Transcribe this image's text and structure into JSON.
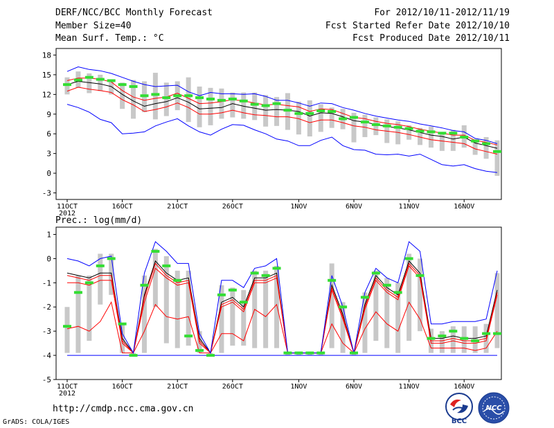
{
  "header": {
    "title": "DERF/NCC/BCC Monthly Forecast",
    "member_size": "Member Size=40",
    "variable": "Mean Surf. Temp.: °C",
    "period": "For 2012/10/11-2012/11/19",
    "fcst_started": "Fcst Started Refer Date 2012/10/10",
    "fcst_produced": "Fcst Produced Date 2012/10/11"
  },
  "panel2_label": "Prec.: log(mm/d)",
  "footer": {
    "url": "http://cmdp.ncc.cma.gov.cn",
    "credit": "GrADS: COLA/IGES"
  },
  "logos": {
    "bcc": "BCC",
    "ncc": "NCC"
  },
  "colors": {
    "mean": "#000000",
    "spread": "#ff0000",
    "extreme": "#0000ff",
    "box": "#c8c8c8",
    "obs": "#33dd33"
  },
  "chart_data": [
    {
      "type": "line",
      "title": "Mean Surf. Temp.: °C",
      "ylim": [
        -4,
        19
      ],
      "yticks": [
        -3,
        0,
        3,
        6,
        9,
        12,
        15,
        18
      ],
      "x_ticks": [
        {
          "day": 1,
          "label": "11OCT",
          "sub": "2012"
        },
        {
          "day": 6,
          "label": "16OCT"
        },
        {
          "day": 11,
          "label": "21OCT"
        },
        {
          "day": 16,
          "label": "26OCT"
        },
        {
          "day": 22,
          "label": "1NOV"
        },
        {
          "day": 27,
          "label": "6NOV"
        },
        {
          "day": 32,
          "label": "11NOV"
        },
        {
          "day": 37,
          "label": "16NOV"
        }
      ],
      "days": 40,
      "series": [
        {
          "name": "mean",
          "values": [
            13.5,
            14,
            13.8,
            13.6,
            13.2,
            12,
            11,
            10.2,
            10.6,
            10.9,
            11.5,
            10.8,
            9.8,
            9.9,
            10,
            10.6,
            10.2,
            9.9,
            9.6,
            9.7,
            9.6,
            9.4,
            8.7,
            9.2,
            9.1,
            8.6,
            8.0,
            7.8,
            7.4,
            7.1,
            6.9,
            6.6,
            6.2,
            5.8,
            5.6,
            5.2,
            5.5,
            4.6,
            4.2,
            3.8
          ]
        },
        {
          "name": "upper",
          "values": [
            14.1,
            14.5,
            14.5,
            14.3,
            13.9,
            12.6,
            11.6,
            11.1,
            11.4,
            11.6,
            12.2,
            11.4,
            10.6,
            10.7,
            10.9,
            11.2,
            11.0,
            10.7,
            10.4,
            10.5,
            10.3,
            10.1,
            9.4,
            9.8,
            9.7,
            9.1,
            8.5,
            8.3,
            7.9,
            7.6,
            7.4,
            7.1,
            6.7,
            6.4,
            6.1,
            5.8,
            5.8,
            5.0,
            4.7,
            4.3
          ]
        },
        {
          "name": "lower",
          "values": [
            12.5,
            13.1,
            12.8,
            12.6,
            12.3,
            11.2,
            10.4,
            9.4,
            9.7,
            10.1,
            10.7,
            10.0,
            9.0,
            9.0,
            9.2,
            9.6,
            9.2,
            8.9,
            8.8,
            8.6,
            8.6,
            8.3,
            7.7,
            8.1,
            8.1,
            7.7,
            7.2,
            7.0,
            6.6,
            6.4,
            6.2,
            5.9,
            5.5,
            5.1,
            4.9,
            4.7,
            4.5,
            3.7,
            3.3,
            2.9
          ]
        },
        {
          "name": "max",
          "values": [
            15.5,
            16.2,
            15.8,
            15.6,
            15.2,
            14.6,
            14.0,
            13.5,
            13.2,
            13.3,
            13.4,
            12.4,
            11.8,
            12.3,
            12.1,
            12.1,
            12.0,
            12.1,
            11.7,
            11.1,
            11.1,
            10.7,
            10.2,
            10.7,
            10.6,
            10.0,
            9.6,
            9.1,
            8.7,
            8.4,
            8.1,
            7.9,
            7.5,
            7.2,
            6.9,
            6.5,
            6.3,
            5.3,
            5.0,
            4.5
          ]
        },
        {
          "name": "min",
          "values": [
            10.5,
            10.0,
            9.3,
            8.2,
            7.7,
            6.0,
            6.1,
            6.3,
            7.2,
            7.8,
            8.3,
            7.2,
            6.3,
            5.8,
            6.7,
            7.4,
            7.3,
            6.6,
            6.0,
            5.2,
            4.9,
            4.2,
            4.2,
            5.0,
            5.5,
            4.2,
            3.6,
            3.5,
            2.9,
            2.8,
            2.9,
            2.6,
            2.9,
            2.1,
            1.3,
            1.1,
            1.3,
            0.7,
            0.3,
            0.1
          ]
        }
      ],
      "obs": [
        13.5,
        14.2,
        14.6,
        14.3,
        14.1,
        13.5,
        13.2,
        11.8,
        12.0,
        11.5,
        11.8,
        11.8,
        11.5,
        11.3,
        11.1,
        11.3,
        11.0,
        10.5,
        10.3,
        10.6,
        9.6,
        9.1,
        9.1,
        9.5,
        9.4,
        8.3,
        8.5,
        7.8,
        7.4,
        7.2,
        7.0,
        6.8,
        6.4,
        6.3,
        6.1,
        6.1,
        5.5,
        4.9,
        4.5,
        3.3
      ],
      "boxes": [
        {
          "hi": 14.6,
          "lo": 12.0
        },
        {
          "hi": 15.5,
          "lo": 13.0
        },
        {
          "hi": 15.2,
          "lo": 12.2
        },
        {
          "hi": 15.0,
          "lo": 12.5
        },
        {
          "hi": 14.3,
          "lo": 12.0
        },
        {
          "hi": 13.8,
          "lo": 9.8
        },
        {
          "hi": 14.2,
          "lo": 8.3
        },
        {
          "hi": 14.0,
          "lo": 9.3
        },
        {
          "hi": 15.3,
          "lo": 8.2
        },
        {
          "hi": 13.8,
          "lo": 8.7
        },
        {
          "hi": 14.0,
          "lo": 9.6
        },
        {
          "hi": 14.6,
          "lo": 7.8
        },
        {
          "hi": 13.2,
          "lo": 7.0
        },
        {
          "hi": 13.0,
          "lo": 7.3
        },
        {
          "hi": 12.9,
          "lo": 8.3
        },
        {
          "hi": 12.3,
          "lo": 8.5
        },
        {
          "hi": 12.3,
          "lo": 8.3
        },
        {
          "hi": 12.3,
          "lo": 8.1
        },
        {
          "hi": 11.9,
          "lo": 7.1
        },
        {
          "hi": 11.6,
          "lo": 7.2
        },
        {
          "hi": 12.2,
          "lo": 6.6
        },
        {
          "hi": 10.9,
          "lo": 5.9
        },
        {
          "hi": 11.1,
          "lo": 5.6
        },
        {
          "hi": 10.5,
          "lo": 6.3
        },
        {
          "hi": 10.0,
          "lo": 6.9
        },
        {
          "hi": 9.8,
          "lo": 6.7
        },
        {
          "hi": 9.2,
          "lo": 4.7
        },
        {
          "hi": 8.9,
          "lo": 5.5
        },
        {
          "hi": 8.5,
          "lo": 5.8
        },
        {
          "hi": 8.2,
          "lo": 4.6
        },
        {
          "hi": 7.9,
          "lo": 4.4
        },
        {
          "hi": 7.3,
          "lo": 5.1
        },
        {
          "hi": 6.9,
          "lo": 4.3
        },
        {
          "hi": 7.1,
          "lo": 3.9
        },
        {
          "hi": 6.2,
          "lo": 3.4
        },
        {
          "hi": 6.6,
          "lo": 3.4
        },
        {
          "hi": 7.3,
          "lo": 3.9
        },
        {
          "hi": 5.2,
          "lo": 2.8
        },
        {
          "hi": 5.5,
          "lo": 2.2
        },
        {
          "hi": 5.0,
          "lo": -0.4
        }
      ]
    },
    {
      "type": "line",
      "title": "Prec.: log(mm/d)",
      "ylim": [
        -5,
        1.3
      ],
      "yticks": [
        -5,
        -4,
        -3,
        -2,
        -1,
        0,
        1
      ],
      "x_ticks": [
        {
          "day": 1,
          "label": "11OCT",
          "sub": "2012"
        },
        {
          "day": 6,
          "label": "16OCT"
        },
        {
          "day": 11,
          "label": "21OCT"
        },
        {
          "day": 16,
          "label": "26OCT"
        },
        {
          "day": 22,
          "label": "1NOV"
        },
        {
          "day": 27,
          "label": "6NOV"
        },
        {
          "day": 32,
          "label": "11NOV"
        },
        {
          "day": 37,
          "label": "16NOV"
        }
      ],
      "days": 40,
      "series": [
        {
          "name": "mean",
          "values": [
            -0.6,
            -0.7,
            -0.8,
            -0.6,
            -0.6,
            -3.3,
            -3.9,
            -1.5,
            -0.1,
            -0.6,
            -0.9,
            -0.8,
            -3.3,
            -3.9,
            -1.8,
            -1.6,
            -2.0,
            -0.8,
            -0.8,
            -0.6,
            -3.9,
            -3.9,
            -3.9,
            -3.9,
            -1.1,
            -2.3,
            -3.9,
            -1.9,
            -0.7,
            -1.2,
            -1.5,
            -0.1,
            -0.6,
            -3.3,
            -3.3,
            -3.2,
            -3.3,
            -3.3,
            -3.2,
            -1.3
          ]
        },
        {
          "name": "upper",
          "values": [
            -0.7,
            -0.8,
            -0.9,
            -0.7,
            -0.7,
            -3.4,
            -3.9,
            -1.6,
            -0.2,
            -0.7,
            -1.0,
            -0.9,
            -3.4,
            -3.9,
            -1.9,
            -1.7,
            -2.1,
            -0.9,
            -0.9,
            -0.7,
            -3.9,
            -3.9,
            -3.9,
            -3.9,
            -1.2,
            -2.4,
            -3.9,
            -2.0,
            -0.8,
            -1.3,
            -1.6,
            -0.2,
            -0.7,
            -3.4,
            -3.4,
            -3.3,
            -3.4,
            -3.4,
            -3.3,
            -1.4
          ]
        },
        {
          "name": "lower",
          "values": [
            -1.0,
            -1.0,
            -1.1,
            -0.9,
            -0.9,
            -3.5,
            -3.9,
            -1.8,
            -0.4,
            -0.8,
            -1.1,
            -1.0,
            -3.5,
            -3.9,
            -2.0,
            -1.8,
            -2.2,
            -1.0,
            -1.0,
            -0.8,
            -3.9,
            -3.9,
            -3.9,
            -3.9,
            -1.3,
            -2.5,
            -3.9,
            -2.1,
            -0.9,
            -1.4,
            -1.7,
            -0.3,
            -0.8,
            -3.5,
            -3.5,
            -3.4,
            -3.5,
            -3.5,
            -3.4,
            -1.5
          ]
        },
        {
          "name": "lower2",
          "values": [
            -2.9,
            -2.8,
            -3.0,
            -2.6,
            -1.8,
            -3.9,
            -3.9,
            -3.0,
            -1.9,
            -2.4,
            -2.5,
            -2.4,
            -3.9,
            -3.9,
            -3.1,
            -3.1,
            -3.4,
            -2.1,
            -2.4,
            -1.9,
            -3.9,
            -3.9,
            -3.9,
            -3.9,
            -2.7,
            -3.5,
            -3.9,
            -2.9,
            -2.2,
            -2.7,
            -3.0,
            -1.8,
            -2.5,
            -3.7,
            -3.7,
            -3.7,
            -3.7,
            -3.8,
            -3.7,
            -3.0
          ]
        },
        {
          "name": "max",
          "values": [
            0.0,
            -0.1,
            -0.3,
            0.0,
            0.1,
            -3.1,
            -3.9,
            -0.6,
            0.7,
            0.3,
            -0.2,
            -0.2,
            -3.1,
            -3.9,
            -0.9,
            -0.9,
            -1.2,
            -0.4,
            -0.3,
            0.0,
            -3.9,
            -3.9,
            -3.9,
            -3.9,
            -0.7,
            -2.0,
            -3.9,
            -1.4,
            -0.4,
            -0.8,
            -1.0,
            0.7,
            0.3,
            -2.7,
            -2.7,
            -2.6,
            -2.6,
            -2.6,
            -2.5,
            -0.5
          ]
        },
        {
          "name": "min",
          "values": [
            -4,
            -4,
            -4,
            -4,
            -4,
            -4,
            -4,
            -4,
            -4,
            -4,
            -4,
            -4,
            -4,
            -4,
            -4,
            -4,
            -4,
            -4,
            -4,
            -4,
            -4,
            -4,
            -4,
            -4,
            -4,
            -4,
            -4,
            -4,
            -4,
            -4,
            -4,
            -4,
            -4,
            -4,
            -4,
            -4,
            -4,
            -4,
            -4,
            -4
          ]
        }
      ],
      "obs": [
        -2.8,
        -1.4,
        -1.0,
        -0.3,
        0.0,
        -2.7,
        -4.0,
        -1.1,
        0.3,
        -0.3,
        -0.9,
        -3.2,
        -3.8,
        -4.0,
        -1.5,
        -1.3,
        -1.8,
        -0.6,
        -0.7,
        -0.4,
        -3.9,
        -3.9,
        -3.9,
        -3.9,
        -0.9,
        -2.0,
        -3.9,
        -1.6,
        -0.6,
        -1.1,
        -1.4,
        0.0,
        -0.7,
        -3.3,
        -3.2,
        -3.0,
        -3.3,
        -3.4,
        -3.1,
        -3.1
      ],
      "boxes": [
        {
          "hi": -2.0,
          "lo": -3.9
        },
        {
          "hi": -0.7,
          "lo": -3.9
        },
        {
          "hi": -0.7,
          "lo": -3.4
        },
        {
          "hi": 0.2,
          "lo": -1.9
        },
        {
          "hi": 0.2,
          "lo": -1.5
        },
        {
          "hi": -2.7,
          "lo": -3.9
        },
        {
          "hi": -3.9,
          "lo": -4.0
        },
        {
          "hi": -0.7,
          "lo": -3.9
        },
        {
          "hi": 0.4,
          "lo": -2.0
        },
        {
          "hi": 0.1,
          "lo": -3.5
        },
        {
          "hi": -0.5,
          "lo": -3.7
        },
        {
          "hi": -0.5,
          "lo": -3.6
        },
        {
          "hi": -3.0,
          "lo": -3.9
        },
        {
          "hi": -3.9,
          "lo": -4.0
        },
        {
          "hi": -1.1,
          "lo": -3.9
        },
        {
          "hi": -1.2,
          "lo": -3.6
        },
        {
          "hi": -1.3,
          "lo": -3.6
        },
        {
          "hi": -0.5,
          "lo": -3.7
        },
        {
          "hi": -0.5,
          "lo": -3.7
        },
        {
          "hi": -0.3,
          "lo": -3.7
        },
        {
          "hi": -3.9,
          "lo": -4.0
        },
        {
          "hi": -3.9,
          "lo": -4.0
        },
        {
          "hi": -3.9,
          "lo": -4.0
        },
        {
          "hi": -3.9,
          "lo": -4.0
        },
        {
          "hi": -0.2,
          "lo": -3.7
        },
        {
          "hi": -1.8,
          "lo": -3.9
        },
        {
          "hi": -3.9,
          "lo": -4.0
        },
        {
          "hi": -1.4,
          "lo": -3.9
        },
        {
          "hi": -0.5,
          "lo": -3.4
        },
        {
          "hi": -0.8,
          "lo": -3.7
        },
        {
          "hi": -1.0,
          "lo": -3.9
        },
        {
          "hi": 0.2,
          "lo": -3.4
        },
        {
          "hi": 0.0,
          "lo": -3.0
        },
        {
          "hi": -2.9,
          "lo": -3.9
        },
        {
          "hi": -3.0,
          "lo": -3.9
        },
        {
          "hi": -2.8,
          "lo": -3.9
        },
        {
          "hi": -2.8,
          "lo": -3.9
        },
        {
          "hi": -2.8,
          "lo": -3.9
        },
        {
          "hi": -2.7,
          "lo": -3.9
        },
        {
          "hi": -0.6,
          "lo": -3.7
        }
      ]
    }
  ]
}
